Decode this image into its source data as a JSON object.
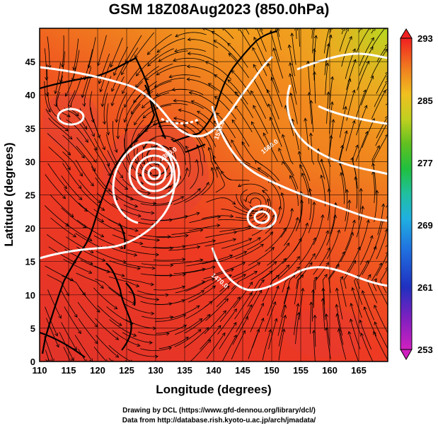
{
  "title": "GSM 18Z08Aug2023 (850.0hPa)",
  "credit_line1": "Drawing by DCL (https://www.gfd-dennou.org/library/dcl/)",
  "credit_line2": "Data from http://database.rish.kyoto-u.ac.jp/arch/jmadata/",
  "colors": {
    "warm": "#f23a1e",
    "hot": "#e0303c",
    "mid": "#f08020",
    "cool": "#f0b020",
    "green": "#9ad020",
    "contour": "#ffffff",
    "coast": "#000000"
  },
  "map_data": {
    "xlabel": "Longitude (degrees)",
    "ylabel": "Latitude  (degrees)",
    "lon_range": [
      110,
      170
    ],
    "lat_range": [
      0,
      50
    ],
    "lon_ticks": [
      "110",
      "115",
      "120",
      "125",
      "130",
      "135",
      "140",
      "145",
      "150",
      "155",
      "160",
      "165"
    ],
    "lat_ticks": [
      "0",
      "5",
      "10",
      "15",
      "20",
      "25",
      "30",
      "35",
      "40",
      "45"
    ],
    "colorbar_labels": [
      "253",
      "261",
      "269",
      "277",
      "285",
      "293"
    ],
    "colorbar_range": [
      253,
      293
    ],
    "contour_labels": [
      "1380.0",
      "1530.0",
      "1560.0",
      "1470.0"
    ],
    "typhoon_centers": [
      {
        "lon": 130,
        "lat": 30.2
      },
      {
        "lon": 147.6,
        "lat": 23.6
      },
      {
        "lon": 113.5,
        "lat": 38.3
      }
    ]
  }
}
